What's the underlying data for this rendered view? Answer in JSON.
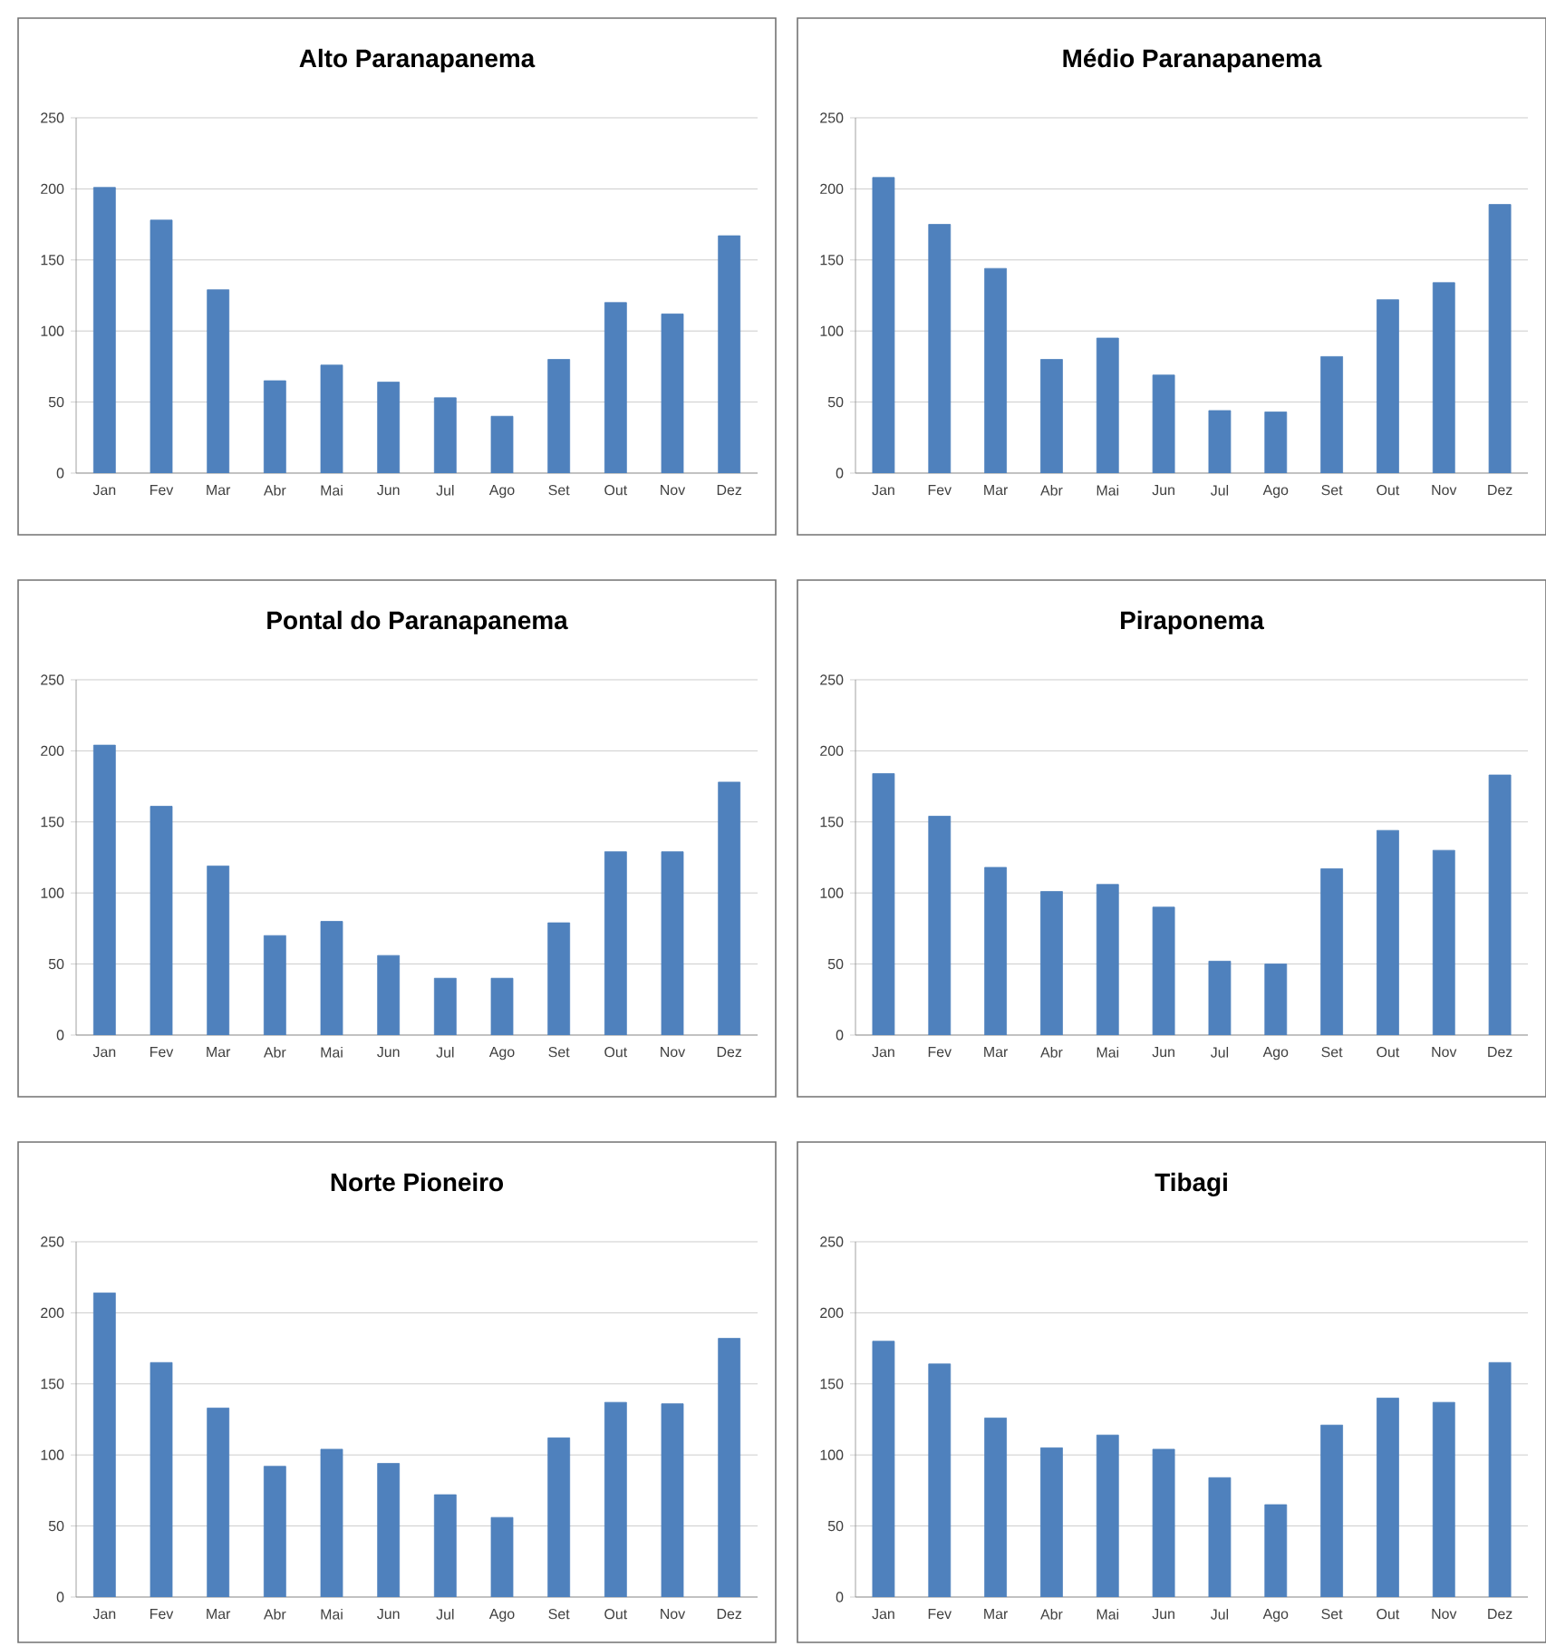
{
  "chart_data": [
    {
      "type": "bar",
      "title": "Alto Paranapanema",
      "categories": [
        "Jan",
        "Fev",
        "Mar",
        "Abr",
        "Mai",
        "Jun",
        "Jul",
        "Ago",
        "Set",
        "Out",
        "Nov",
        "Dez"
      ],
      "values": [
        201,
        178,
        129,
        65,
        76,
        64,
        53,
        40,
        80,
        120,
        112,
        167
      ],
      "color": "#4f81bd",
      "ylim": [
        0,
        250
      ],
      "yticks": [
        0,
        50,
        100,
        150,
        200,
        250
      ],
      "grid": "y"
    },
    {
      "type": "bar",
      "title": "Médio Paranapanema",
      "categories": [
        "Jan",
        "Fev",
        "Mar",
        "Abr",
        "Mai",
        "Jun",
        "Jul",
        "Ago",
        "Set",
        "Out",
        "Nov",
        "Dez"
      ],
      "values": [
        208,
        175,
        144,
        80,
        95,
        69,
        44,
        43,
        82,
        122,
        134,
        189
      ],
      "color": "#4f81bd",
      "ylim": [
        0,
        250
      ],
      "yticks": [
        0,
        50,
        100,
        150,
        200,
        250
      ],
      "grid": "y"
    },
    {
      "type": "bar",
      "title": "Pontal do Paranapanema",
      "categories": [
        "Jan",
        "Fev",
        "Mar",
        "Abr",
        "Mai",
        "Jun",
        "Jul",
        "Ago",
        "Set",
        "Out",
        "Nov",
        "Dez"
      ],
      "values": [
        204,
        161,
        119,
        70,
        80,
        56,
        40,
        40,
        79,
        129,
        129,
        178
      ],
      "color": "#4f81bd",
      "ylim": [
        0,
        250
      ],
      "yticks": [
        0,
        50,
        100,
        150,
        200,
        250
      ],
      "grid": "y"
    },
    {
      "type": "bar",
      "title": "Piraponema",
      "categories": [
        "Jan",
        "Fev",
        "Mar",
        "Abr",
        "Mai",
        "Jun",
        "Jul",
        "Ago",
        "Set",
        "Out",
        "Nov",
        "Dez"
      ],
      "values": [
        184,
        154,
        118,
        101,
        106,
        90,
        52,
        50,
        117,
        144,
        130,
        183
      ],
      "color": "#4f81bd",
      "ylim": [
        0,
        250
      ],
      "yticks": [
        0,
        50,
        100,
        150,
        200,
        250
      ],
      "grid": "y"
    },
    {
      "type": "bar",
      "title": "Norte Pioneiro",
      "categories": [
        "Jan",
        "Fev",
        "Mar",
        "Abr",
        "Mai",
        "Jun",
        "Jul",
        "Ago",
        "Set",
        "Out",
        "Nov",
        "Dez"
      ],
      "values": [
        214,
        165,
        133,
        92,
        104,
        94,
        72,
        56,
        112,
        137,
        136,
        182
      ],
      "color": "#4f81bd",
      "ylim": [
        0,
        250
      ],
      "yticks": [
        0,
        50,
        100,
        150,
        200,
        250
      ],
      "grid": "y"
    },
    {
      "type": "bar",
      "title": "Tibagi",
      "categories": [
        "Jan",
        "Fev",
        "Mar",
        "Abr",
        "Mai",
        "Jun",
        "Jul",
        "Ago",
        "Set",
        "Out",
        "Nov",
        "Dez"
      ],
      "values": [
        180,
        164,
        126,
        105,
        114,
        104,
        84,
        65,
        121,
        140,
        137,
        165
      ],
      "color": "#4f81bd",
      "ylim": [
        0,
        250
      ],
      "yticks": [
        0,
        50,
        100,
        150,
        200,
        250
      ],
      "grid": "y"
    }
  ]
}
